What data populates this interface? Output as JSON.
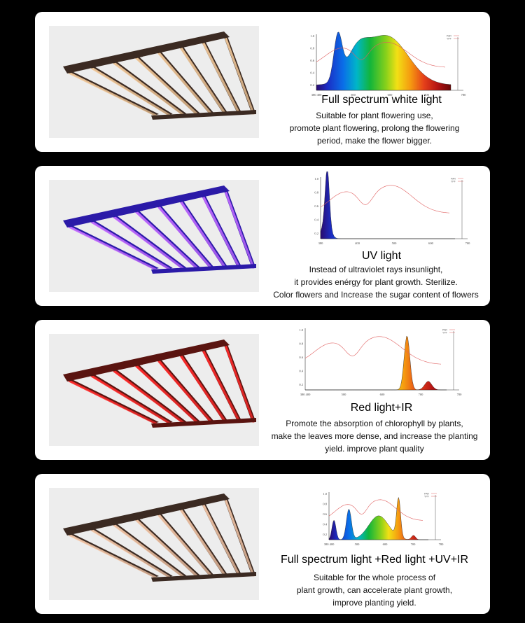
{
  "panels": [
    {
      "title": "Full spectrum white light",
      "desc": [
        "Suitable for plant flowering use,",
        "promote plant flowering, prolong the flowering",
        "period, make the flower bigger."
      ],
      "light_color": "#f2c99a",
      "frame_color": "#3b2a22",
      "bg_color": "#ededed",
      "chart": {
        "ticks": [
          "380 400",
          "500",
          "600",
          "700",
          "780"
        ],
        "yticks": [
          "1.0",
          "0.8",
          "0.6",
          "0.4",
          "0.2"
        ],
        "legend": [
          "PAR",
          "YPF"
        ]
      }
    },
    {
      "title": "UV light",
      "desc": [
        "Instead of ultraviolet rays insunlight,",
        "it provides enérgy for plant growth.  Sterilize.",
        "Color flowers and Increase the sugar content of flowers"
      ],
      "light_color": "#c26bff",
      "frame_color": "#2b1aa8",
      "bg_color": "#ededed",
      "chart": {
        "ticks": [
          "380",
          "400",
          "500",
          "600",
          "700"
        ],
        "yticks": [
          "1.0",
          "0.8",
          "0.6",
          "0.4",
          "0.2"
        ],
        "legend": [
          "PAR",
          "YPF"
        ]
      }
    },
    {
      "title": "Red light+IR",
      "desc": [
        "Promote the absorption of chlorophyll by plants,",
        "make the leaves more dense, and increase the planting",
        "yield. improve plant quality"
      ],
      "light_color": "#ff2a2a",
      "frame_color": "#5a1410",
      "bg_color": "#ededed",
      "chart": {
        "ticks": [
          "380 400",
          "500",
          "600",
          "700",
          "780"
        ],
        "yticks": [
          "1.0",
          "0.8",
          "0.6",
          "0.4",
          "0.2"
        ],
        "legend": [
          "PAR",
          "YPF"
        ]
      }
    },
    {
      "title": "Full spectrum light +Red light +UV+IR",
      "desc": [
        "Suitable for the whole process of",
        "plant growth, can accelerate plant growth,",
        "improve planting yield."
      ],
      "light_color": "#f4c7a8",
      "frame_color": "#3b2a22",
      "bg_color": "#ededed",
      "chart": {
        "ticks": [
          "380 400",
          "500",
          "600",
          "700",
          "780"
        ],
        "yticks": [
          "1.0",
          "0.8",
          "0.6",
          "0.4",
          "0.2"
        ],
        "legend": [
          "PAR",
          "YPF"
        ]
      }
    }
  ]
}
